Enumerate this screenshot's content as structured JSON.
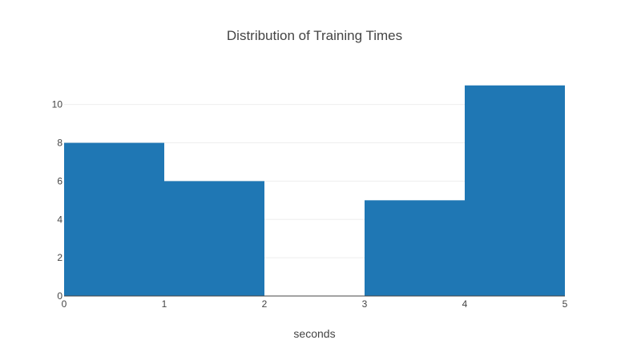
{
  "chart_data": {
    "type": "bar",
    "subtype": "histogram",
    "title": "Distribution of Training Times",
    "xlabel": "seconds",
    "ylabel": "",
    "bins": [
      {
        "start": 0,
        "end": 1,
        "count": 8
      },
      {
        "start": 1,
        "end": 2,
        "count": 6
      },
      {
        "start": 2,
        "end": 3,
        "count": 0
      },
      {
        "start": 3,
        "end": 4,
        "count": 5
      },
      {
        "start": 4,
        "end": 5,
        "count": 11
      }
    ],
    "xlim": [
      0,
      5
    ],
    "ylim": [
      0,
      11.7
    ],
    "xticks": [
      0,
      1,
      2,
      3,
      4,
      5
    ],
    "yticks": [
      0,
      2,
      4,
      6,
      8,
      10
    ],
    "grid": true,
    "legend": false,
    "bar_color": "#1f77b4"
  }
}
